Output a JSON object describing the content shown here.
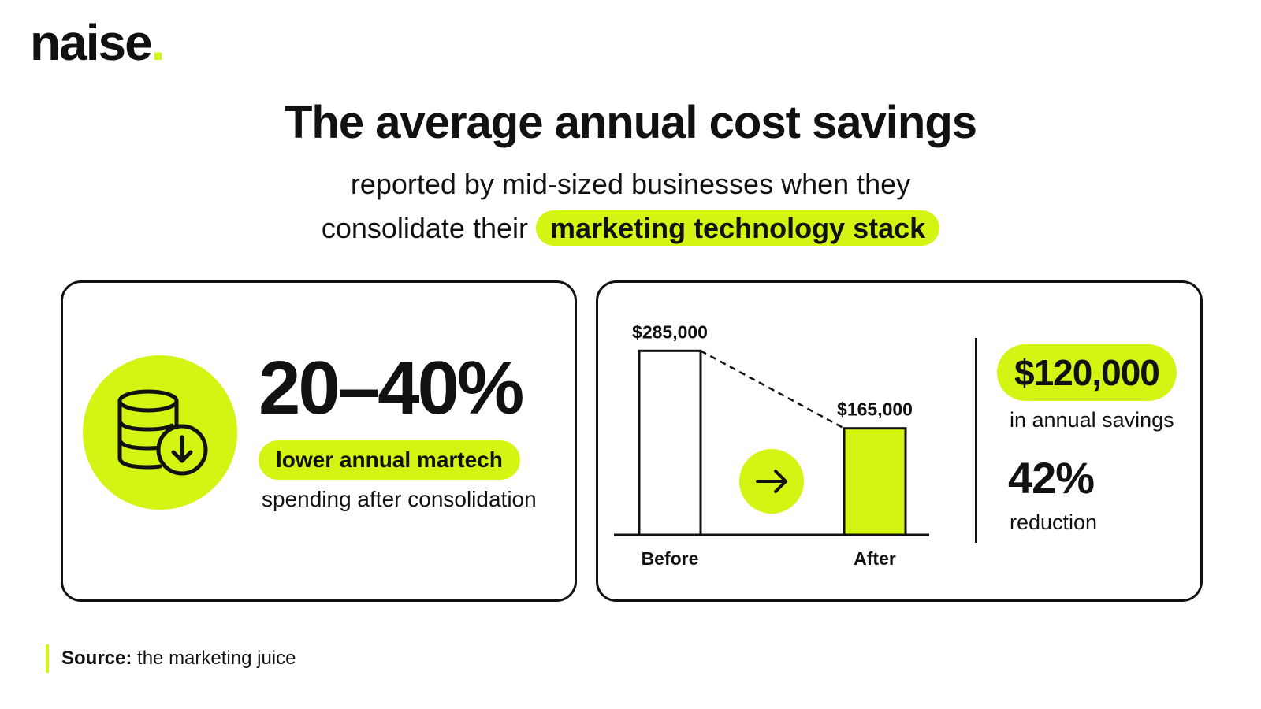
{
  "brand": {
    "name": "naise",
    "dot": ".",
    "accent": "#d4f413"
  },
  "header": {
    "title": "The average annual cost savings",
    "subtitle_line1": "reported by mid-sized businesses when they",
    "subtitle_line2_prefix": "consolidate their",
    "subtitle_highlight": "marketing technology stack"
  },
  "left_card": {
    "icon": "database-down-icon",
    "big_value": "20–40%",
    "pill_text": "lower annual martech",
    "description": "spending after consolidation"
  },
  "right_card": {
    "savings_value": "$120,000",
    "savings_label": "in annual savings",
    "reduction_value": "42%",
    "reduction_label": "reduction"
  },
  "chart_data": {
    "type": "bar",
    "categories": [
      "Before",
      "After"
    ],
    "values": [
      285000,
      165000
    ],
    "value_labels": [
      "$285,000",
      "$165,000"
    ],
    "colors": [
      "#ffffff",
      "#d4f413"
    ],
    "title": "",
    "xlabel": "",
    "ylabel": "",
    "ylim": [
      0,
      300000
    ]
  },
  "source": {
    "label": "Source:",
    "text": "the marketing juice"
  }
}
